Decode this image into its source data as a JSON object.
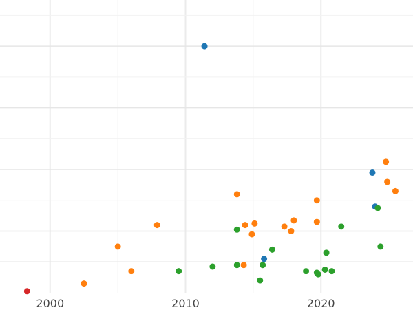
{
  "chart_data": {
    "type": "scatter",
    "title": "",
    "xlabel": "",
    "ylabel": "",
    "x_ticks": [
      2000,
      2010,
      2020
    ],
    "xlim": [
      1996.3,
      2026.8
    ],
    "ylim": [
      0,
      9.5
    ],
    "grid": true,
    "legend": "none",
    "series": [
      {
        "color": "#1f77b4",
        "points": [
          {
            "x": 2011.4,
            "y": 8.0
          },
          {
            "x": 2023.8,
            "y": 3.9
          },
          {
            "x": 2024.0,
            "y": 2.8
          },
          {
            "x": 2015.8,
            "y": 1.1
          }
        ]
      },
      {
        "color": "#ff7f0e",
        "points": [
          {
            "x": 2002.5,
            "y": 0.3
          },
          {
            "x": 2005.0,
            "y": 1.5
          },
          {
            "x": 2006.0,
            "y": 0.7
          },
          {
            "x": 2007.9,
            "y": 2.2
          },
          {
            "x": 2013.8,
            "y": 3.2
          },
          {
            "x": 2014.3,
            "y": 0.9
          },
          {
            "x": 2014.4,
            "y": 2.2
          },
          {
            "x": 2014.9,
            "y": 1.9
          },
          {
            "x": 2015.1,
            "y": 2.25
          },
          {
            "x": 2017.3,
            "y": 2.15
          },
          {
            "x": 2017.8,
            "y": 2.0
          },
          {
            "x": 2018.0,
            "y": 2.35
          },
          {
            "x": 2019.7,
            "y": 2.3
          },
          {
            "x": 2019.7,
            "y": 3.0
          },
          {
            "x": 2024.8,
            "y": 4.25
          },
          {
            "x": 2024.9,
            "y": 3.6
          },
          {
            "x": 2025.5,
            "y": 3.3
          }
        ]
      },
      {
        "color": "#2ca02c",
        "points": [
          {
            "x": 2009.5,
            "y": 0.7
          },
          {
            "x": 2012.0,
            "y": 0.85
          },
          {
            "x": 2013.8,
            "y": 0.9
          },
          {
            "x": 2013.8,
            "y": 2.05
          },
          {
            "x": 2015.5,
            "y": 0.4
          },
          {
            "x": 2015.7,
            "y": 0.9
          },
          {
            "x": 2016.4,
            "y": 1.4
          },
          {
            "x": 2018.9,
            "y": 0.7
          },
          {
            "x": 2019.7,
            "y": 0.65
          },
          {
            "x": 2019.8,
            "y": 0.6
          },
          {
            "x": 2020.3,
            "y": 0.75
          },
          {
            "x": 2020.4,
            "y": 1.3
          },
          {
            "x": 2020.8,
            "y": 0.7
          },
          {
            "x": 2021.5,
            "y": 2.15
          },
          {
            "x": 2024.2,
            "y": 2.75
          },
          {
            "x": 2024.4,
            "y": 1.5
          }
        ]
      },
      {
        "color": "#d62728",
        "points": [
          {
            "x": 1998.3,
            "y": 0.05
          }
        ]
      }
    ]
  }
}
